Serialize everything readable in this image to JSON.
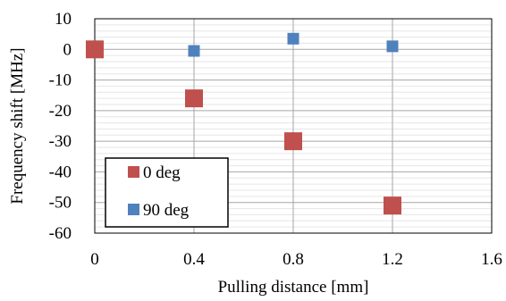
{
  "chart_data": {
    "type": "scatter",
    "title": "",
    "xlabel": "Pulling distance [mm]",
    "ylabel": "Frequency shift [MHz]",
    "xlim": [
      0,
      1.6
    ],
    "ylim": [
      -60,
      10
    ],
    "x_ticks": [
      {
        "value": 0,
        "label": "0"
      },
      {
        "value": 0.4,
        "label": "0.4"
      },
      {
        "value": 0.8,
        "label": "0.8"
      },
      {
        "value": 1.2,
        "label": "1.2"
      },
      {
        "value": 1.6,
        "label": "1.6"
      }
    ],
    "y_ticks": [
      {
        "value": 10,
        "label": "10"
      },
      {
        "value": 0,
        "label": "0"
      },
      {
        "value": -10,
        "label": "-10"
      },
      {
        "value": -20,
        "label": "-20"
      },
      {
        "value": -30,
        "label": "-30"
      },
      {
        "value": -40,
        "label": "-40"
      },
      {
        "value": -50,
        "label": "-50"
      },
      {
        "value": -60,
        "label": "-60"
      }
    ],
    "grid": "major vertical and horizontal gridlines with minor horizontal gridlines",
    "legend_position": "bottom-left",
    "series": [
      {
        "name": "0 deg",
        "color": "#C0504D",
        "marker": "square-large",
        "points": [
          {
            "x": 0,
            "y": 0
          },
          {
            "x": 0.4,
            "y": -16
          },
          {
            "x": 0.8,
            "y": -30
          },
          {
            "x": 1.2,
            "y": -51
          }
        ]
      },
      {
        "name": "90 deg",
        "color": "#4F81BD",
        "marker": "square-small",
        "points": [
          {
            "x": 0,
            "y": 0
          },
          {
            "x": 0.4,
            "y": -0.5
          },
          {
            "x": 0.8,
            "y": 3.5
          },
          {
            "x": 1.2,
            "y": 1
          }
        ]
      }
    ]
  }
}
